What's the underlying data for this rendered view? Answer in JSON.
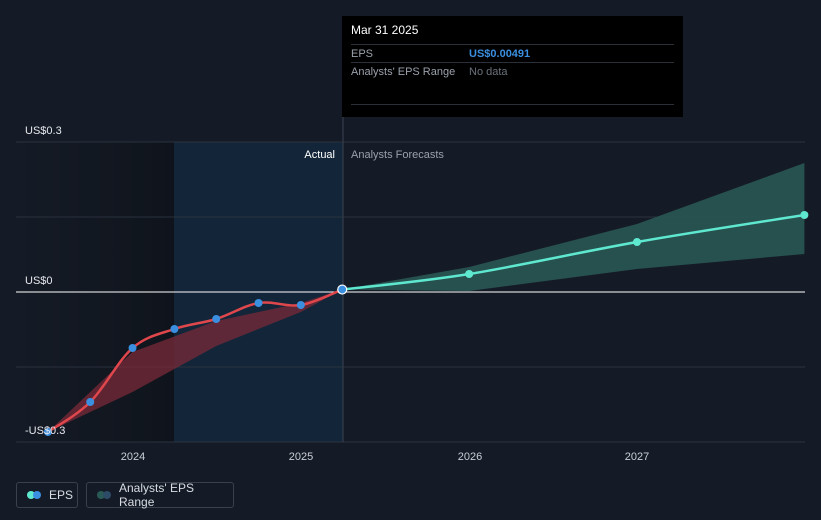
{
  "tooltip": {
    "date": "Mar 31 2025",
    "eps_label": "EPS",
    "eps_value": "US$0.00491",
    "range_label": "Analysts' EPS Range",
    "range_value": "No data"
  },
  "legend": {
    "eps_label": "EPS",
    "range_label": "Analysts' EPS Range"
  },
  "colors": {
    "eps_line": "#e0474c",
    "eps_dot": "#3b8fe0",
    "forecast_line": "#5fe8d0",
    "forecast_band": "#2a5a56",
    "past_band": "#7a2a38"
  },
  "chart_data": {
    "type": "line",
    "y_tick_labels": [
      "US$0.3",
      "US$0",
      "-US$0.3"
    ],
    "x_tick_labels": [
      "2024",
      "2025",
      "2026",
      "2027"
    ],
    "region_labels": {
      "actual": "Actual",
      "forecast": "Analysts Forecasts"
    },
    "ylim": [
      -0.3,
      0.3
    ],
    "xlim": [
      "2023-06-01",
      "2027-12-31"
    ],
    "grid": true,
    "legend_position": "bottom-left",
    "series": [
      {
        "name": "EPS",
        "points": [
          {
            "x": "2023-06-30",
            "y": -0.28
          },
          {
            "x": "2023-09-30",
            "y": -0.22
          },
          {
            "x": "2023-12-31",
            "y": -0.112
          },
          {
            "x": "2024-03-31",
            "y": -0.074
          },
          {
            "x": "2024-06-30",
            "y": -0.054
          },
          {
            "x": "2024-09-30",
            "y": -0.022
          },
          {
            "x": "2024-12-31",
            "y": -0.026
          },
          {
            "x": "2025-03-31",
            "y": 0.00491
          }
        ]
      },
      {
        "name": "Analysts Forecasts",
        "points": [
          {
            "x": "2025-03-31",
            "y": 0.00491
          },
          {
            "x": "2026-01-01",
            "y": 0.036
          },
          {
            "x": "2027-01-01",
            "y": 0.1
          },
          {
            "x": "2027-12-31",
            "y": 0.154
          }
        ],
        "range_high": [
          {
            "x": "2025-03-31",
            "y": 0.00491
          },
          {
            "x": "2026-01-01",
            "y": 0.05
          },
          {
            "x": "2027-01-01",
            "y": 0.136
          },
          {
            "x": "2027-12-31",
            "y": 0.258
          }
        ],
        "range_low": [
          {
            "x": "2025-03-31",
            "y": 0.00491
          },
          {
            "x": "2026-01-01",
            "y": 0.002
          },
          {
            "x": "2027-01-01",
            "y": 0.046
          },
          {
            "x": "2027-12-31",
            "y": 0.076
          }
        ]
      }
    ],
    "past_range_high": [
      {
        "x": "2023-06-30",
        "y": -0.28
      },
      {
        "x": "2023-12-31",
        "y": -0.12
      },
      {
        "x": "2024-06-30",
        "y": -0.058
      },
      {
        "x": "2024-12-31",
        "y": -0.022
      },
      {
        "x": "2025-03-31",
        "y": 0.00491
      }
    ],
    "past_range_low": [
      {
        "x": "2023-06-30",
        "y": -0.28
      },
      {
        "x": "2023-12-31",
        "y": -0.2
      },
      {
        "x": "2024-06-30",
        "y": -0.108
      },
      {
        "x": "2024-12-31",
        "y": -0.04
      },
      {
        "x": "2025-03-31",
        "y": 0.00491
      }
    ]
  }
}
